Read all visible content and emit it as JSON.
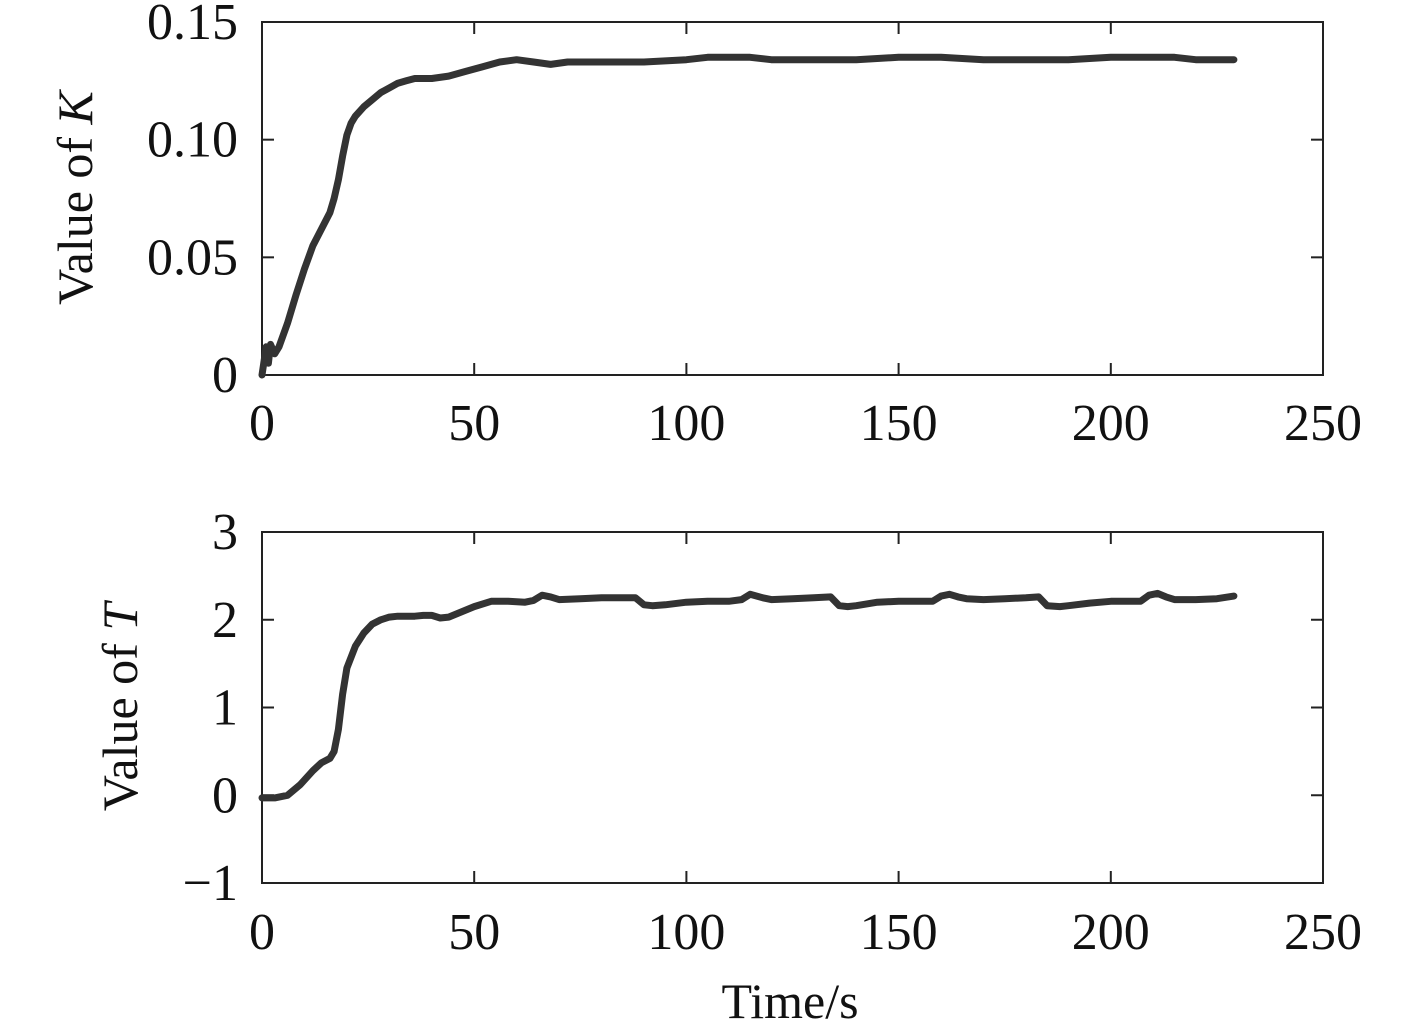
{
  "chart_data": [
    {
      "type": "line",
      "xlabel": "",
      "ylabel": "Value of K",
      "ylabel_plain": "Value of ",
      "ylabel_symbol": "K",
      "xlim": [
        0,
        250
      ],
      "ylim": [
        0,
        0.15
      ],
      "xticks": [
        "0",
        "50",
        "100",
        "150",
        "200",
        "250"
      ],
      "yticks": [
        "0",
        "0.05",
        "0.10",
        "0.15"
      ],
      "ytick_values": [
        0,
        0.05,
        0.1,
        0.15
      ],
      "xtick_values": [
        0,
        50,
        100,
        150,
        200,
        250
      ],
      "grid": false,
      "line_color": "#333333",
      "series": [
        {
          "x": [
            0,
            1,
            1.5,
            2,
            3,
            4,
            6,
            8,
            10,
            12,
            14,
            16,
            17,
            18,
            19,
            20,
            21,
            22,
            24,
            26,
            28,
            30,
            32,
            34,
            36,
            40,
            44,
            48,
            52,
            56,
            60,
            64,
            68,
            72,
            80,
            90,
            100,
            105,
            110,
            115,
            120,
            130,
            140,
            150,
            160,
            170,
            180,
            185,
            190,
            200,
            205,
            210,
            215,
            220,
            225,
            229
          ],
          "y": [
            0,
            0.012,
            0.005,
            0.013,
            0.009,
            0.012,
            0.022,
            0.034,
            0.045,
            0.055,
            0.062,
            0.069,
            0.075,
            0.083,
            0.093,
            0.102,
            0.107,
            0.11,
            0.114,
            0.117,
            0.12,
            0.122,
            0.124,
            0.125,
            0.126,
            0.126,
            0.127,
            0.129,
            0.131,
            0.133,
            0.134,
            0.133,
            0.132,
            0.133,
            0.133,
            0.133,
            0.134,
            0.135,
            0.135,
            0.135,
            0.134,
            0.134,
            0.134,
            0.135,
            0.135,
            0.134,
            0.134,
            0.134,
            0.134,
            0.135,
            0.135,
            0.135,
            0.135,
            0.134,
            0.134,
            0.134
          ]
        }
      ]
    },
    {
      "type": "line",
      "xlabel": "Time/s",
      "ylabel": "Value of T",
      "ylabel_plain": "Value of ",
      "ylabel_symbol": "T",
      "xlim": [
        0,
        250
      ],
      "ylim": [
        -1,
        3
      ],
      "xticks": [
        "0",
        "50",
        "100",
        "150",
        "200",
        "250"
      ],
      "yticks": [
        "−1",
        "0",
        "1",
        "2",
        "3"
      ],
      "ytick_values": [
        -1,
        0,
        1,
        2,
        3
      ],
      "xtick_values": [
        0,
        50,
        100,
        150,
        200,
        250
      ],
      "grid": false,
      "line_color": "#333333",
      "series": [
        {
          "x": [
            0,
            3,
            6,
            9,
            12,
            14,
            16,
            17,
            18,
            19,
            20,
            22,
            24,
            26,
            28,
            30,
            32,
            34,
            36,
            38,
            40,
            42,
            44,
            46,
            50,
            54,
            58,
            62,
            64,
            66,
            68,
            70,
            75,
            80,
            86,
            88,
            90,
            92,
            95,
            100,
            105,
            110,
            113,
            115,
            118,
            120,
            125,
            130,
            134,
            136,
            138,
            140,
            145,
            150,
            155,
            158,
            160,
            162,
            164,
            166,
            170,
            175,
            180,
            183,
            185,
            188,
            190,
            195,
            200,
            205,
            207,
            209,
            211,
            213,
            215,
            220,
            225,
            229
          ],
          "y": [
            -0.03,
            -0.03,
            0.0,
            0.12,
            0.28,
            0.37,
            0.42,
            0.5,
            0.75,
            1.15,
            1.45,
            1.7,
            1.85,
            1.95,
            2.0,
            2.03,
            2.04,
            2.04,
            2.04,
            2.05,
            2.05,
            2.02,
            2.03,
            2.07,
            2.15,
            2.21,
            2.21,
            2.2,
            2.22,
            2.28,
            2.26,
            2.23,
            2.24,
            2.25,
            2.25,
            2.25,
            2.17,
            2.16,
            2.17,
            2.2,
            2.21,
            2.21,
            2.23,
            2.29,
            2.25,
            2.23,
            2.24,
            2.25,
            2.26,
            2.16,
            2.15,
            2.16,
            2.2,
            2.21,
            2.21,
            2.21,
            2.27,
            2.29,
            2.26,
            2.24,
            2.23,
            2.24,
            2.25,
            2.26,
            2.16,
            2.15,
            2.16,
            2.19,
            2.21,
            2.21,
            2.21,
            2.28,
            2.3,
            2.26,
            2.23,
            2.23,
            2.24,
            2.27
          ]
        }
      ]
    }
  ]
}
